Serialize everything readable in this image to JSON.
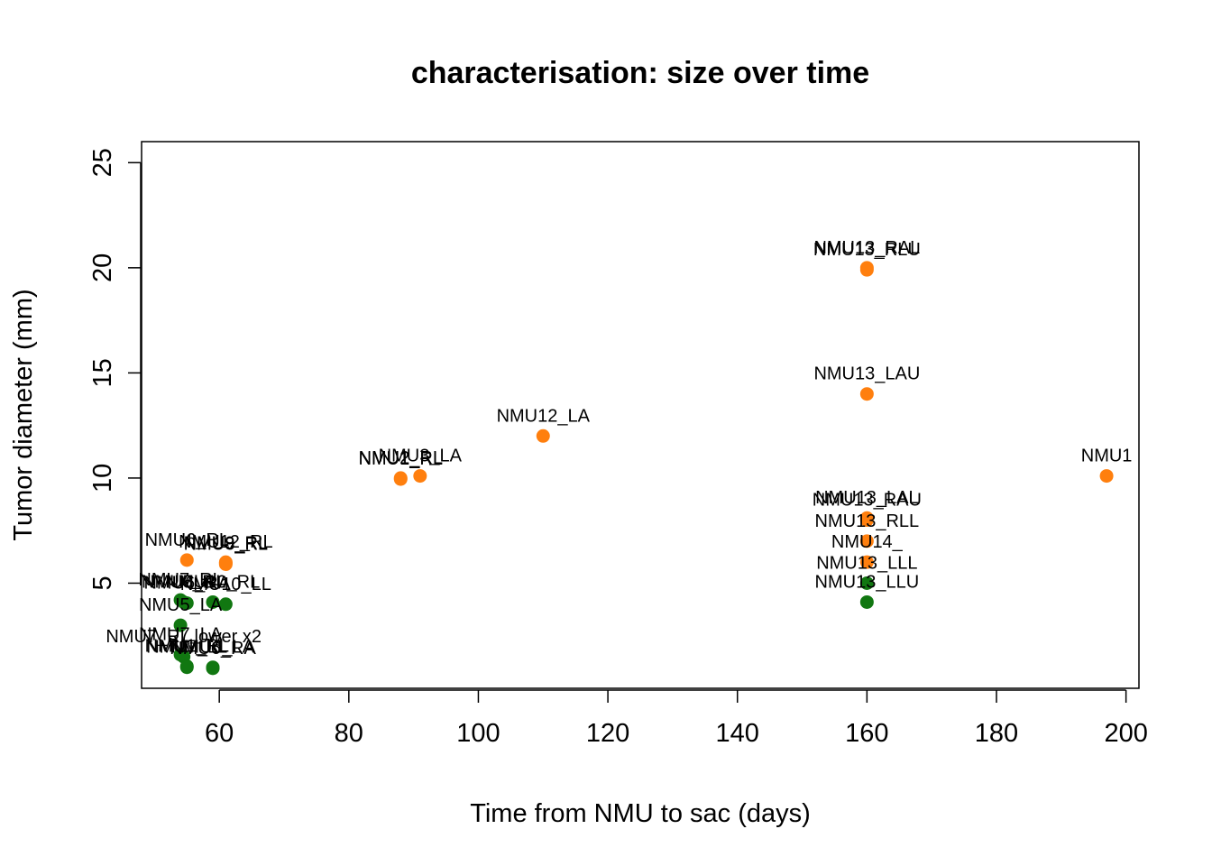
{
  "chart_data": {
    "type": "scatter",
    "title": "characterisation: size over time",
    "xlabel": "Time from NMU to sac (days)",
    "ylabel": "Tumor diameter (mm)",
    "xlim": [
      48,
      202
    ],
    "ylim": [
      0,
      26
    ],
    "xticks": [
      60,
      80,
      100,
      120,
      140,
      160,
      180,
      200
    ],
    "yticks": [
      5,
      10,
      15,
      20,
      25
    ],
    "grid": false,
    "legend": "none",
    "colors": {
      "orange": "#FF7F0E",
      "green": "#117711"
    },
    "points": [
      {
        "x": 55,
        "y": 6.1,
        "label": "NMU6_RL",
        "color": "orange"
      },
      {
        "x": 61,
        "y": 6.0,
        "label": "NMU12_RL",
        "color": "orange"
      },
      {
        "x": 61,
        "y": 5.95,
        "label": "NMU9_RL",
        "color": "orange"
      },
      {
        "x": 61,
        "y": 5.9,
        "label": "NMU8_RL",
        "color": "orange"
      },
      {
        "x": 88,
        "y": 10.0,
        "label": "NMU2_RL",
        "color": "orange"
      },
      {
        "x": 88,
        "y": 9.95,
        "label": "NMU1_RL",
        "color": "orange"
      },
      {
        "x": 91,
        "y": 10.1,
        "label": "NMU3_LA",
        "color": "orange"
      },
      {
        "x": 110,
        "y": 12.0,
        "label": "NMU12_LA",
        "color": "orange"
      },
      {
        "x": 160,
        "y": 20.0,
        "label": "NMU13_RAL",
        "color": "orange"
      },
      {
        "x": 160,
        "y": 19.9,
        "label": "NMU13_RLU",
        "color": "orange"
      },
      {
        "x": 160,
        "y": 14.0,
        "label": "NMU13_LAU",
        "color": "orange"
      },
      {
        "x": 160,
        "y": 8.1,
        "label": "NMU13_LAL",
        "color": "orange"
      },
      {
        "x": 160,
        "y": 8.0,
        "label": "NMU13_RAU",
        "color": "orange"
      },
      {
        "x": 160,
        "y": 7.0,
        "label": "NMU13_RLL",
        "color": "orange"
      },
      {
        "x": 160,
        "y": 6.0,
        "label": "NMU14_",
        "color": "orange"
      },
      {
        "x": 197,
        "y": 10.1,
        "label": "NMU1",
        "color": "orange"
      },
      {
        "x": 160,
        "y": 5.0,
        "label": "NMU13_LLL",
        "color": "green"
      },
      {
        "x": 160,
        "y": 4.1,
        "label": "NMU13_LLU",
        "color": "green"
      },
      {
        "x": 54,
        "y": 4.2,
        "label": "NMU7_RL",
        "color": "green"
      },
      {
        "x": 54.5,
        "y": 4.1,
        "label": "NMU5_RL",
        "color": "green"
      },
      {
        "x": 55,
        "y": 4.05,
        "label": "NMU6_RA",
        "color": "green"
      },
      {
        "x": 59,
        "y": 4.1,
        "label": "NMU10_RL",
        "color": "green"
      },
      {
        "x": 61,
        "y": 4.0,
        "label": "NMU10_LL",
        "color": "green"
      },
      {
        "x": 54,
        "y": 3.0,
        "label": "NMU5_LA",
        "color": "green"
      },
      {
        "x": 54,
        "y": 1.6,
        "label": "NMU7_LA",
        "color": "green"
      },
      {
        "x": 54.5,
        "y": 1.5,
        "label": "NMU7_RL lower x2",
        "color": "green"
      },
      {
        "x": 55,
        "y": 1.05,
        "label": "NMU1_RL",
        "color": "green"
      },
      {
        "x": 55,
        "y": 1.0,
        "label": "NMU7_LL",
        "color": "green"
      },
      {
        "x": 59,
        "y": 1.0,
        "label": "NMU6_LA",
        "color": "green"
      },
      {
        "x": 59,
        "y": 0.95,
        "label": "NMU6_RA",
        "color": "green"
      }
    ]
  }
}
